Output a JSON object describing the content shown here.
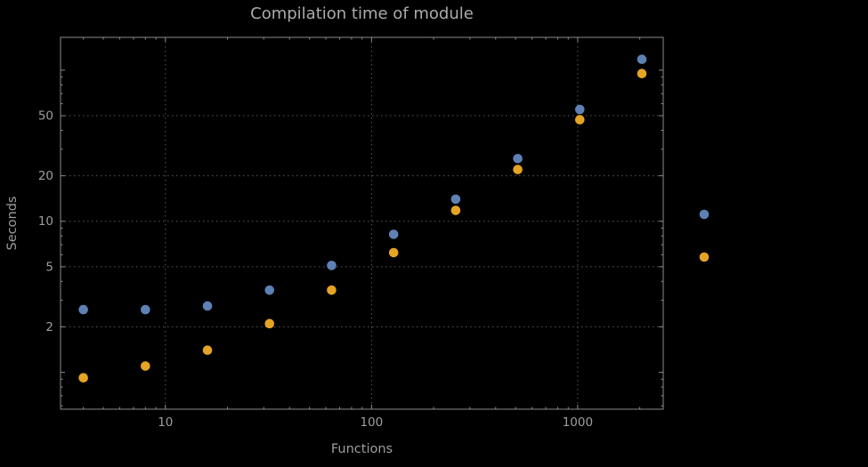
{
  "style": {
    "background": "#000000",
    "frame": "#8c8c8c",
    "grid": "#5a5a5a",
    "text": "#9e9e9e",
    "title": "#ababab"
  },
  "chart_data": {
    "type": "scatter",
    "title": "Compilation time of module",
    "xlabel": "Functions",
    "ylabel": "Seconds",
    "x_scale": "log",
    "y_scale": "log",
    "xlim": [
      3.1,
      2600
    ],
    "ylim": [
      0.57,
      165
    ],
    "grid": "dotted",
    "legend_position": "right",
    "x_ticks": [
      10,
      100,
      1000
    ],
    "x_tick_labels": [
      "10",
      "100",
      "1000"
    ],
    "y_ticks": [
      2,
      5,
      10,
      20,
      50
    ],
    "y_tick_labels": [
      "2",
      "5",
      "10",
      "20",
      "50"
    ],
    "x_gridlines": [
      10,
      100,
      1000
    ],
    "y_gridlines": [
      2,
      5,
      10,
      20,
      50
    ],
    "x": [
      4,
      8,
      16,
      32,
      64,
      128,
      256,
      512,
      1024,
      2048
    ],
    "series": [
      {
        "name": "blue",
        "color": "#5e81b5",
        "values": [
          2.6,
          2.6,
          2.75,
          3.5,
          5.1,
          8.2,
          14,
          26,
          55,
          118
        ]
      },
      {
        "name": "orange",
        "color": "#e5a423",
        "values": [
          0.92,
          1.1,
          1.4,
          2.1,
          3.5,
          6.2,
          11.8,
          22,
          47,
          95
        ]
      }
    ]
  }
}
